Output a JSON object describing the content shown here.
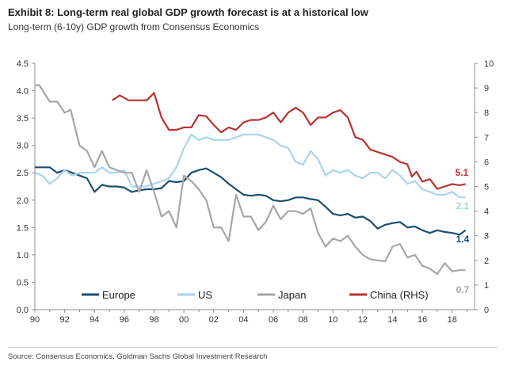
{
  "header": {
    "title": "Exhibit 8: Long-term real global GDP growth forecast is at a historical low",
    "subtitle": "Long-term (6-10y) GDP growth from Consensus Economics"
  },
  "footer": {
    "source": "Source: Consensus Economics, Goldman Sachs Global Investment Research"
  },
  "chart_data": {
    "type": "line",
    "x_ticks": [
      "90",
      "92",
      "94",
      "96",
      "98",
      "00",
      "02",
      "04",
      "06",
      "08",
      "10",
      "12",
      "14",
      "16",
      "18"
    ],
    "y_left_ticks": [
      "0.0",
      "0.5",
      "1.0",
      "1.5",
      "2.0",
      "2.5",
      "3.0",
      "3.5",
      "4.0",
      "4.5"
    ],
    "y_right_ticks": [
      "0",
      "1",
      "2",
      "3",
      "4",
      "5",
      "6",
      "7",
      "8",
      "9",
      "10"
    ],
    "xlim": [
      1990,
      2019.5
    ],
    "ylim_left": [
      0,
      4.5
    ],
    "ylim_right": [
      0,
      10
    ],
    "grid": false,
    "legend_placement": "bottom-center",
    "series": [
      {
        "name": "Europe",
        "axis": "left",
        "color": "#1b4f72",
        "end_label": "1.4",
        "points": [
          [
            1990,
            2.6
          ],
          [
            1990.5,
            2.6
          ],
          [
            1991,
            2.6
          ],
          [
            1991.5,
            2.5
          ],
          [
            1992,
            2.55
          ],
          [
            1992.5,
            2.5
          ],
          [
            1993,
            2.45
          ],
          [
            1993.5,
            2.4
          ],
          [
            1994,
            2.15
          ],
          [
            1994.5,
            2.28
          ],
          [
            1995,
            2.25
          ],
          [
            1995.5,
            2.25
          ],
          [
            1996,
            2.23
          ],
          [
            1996.5,
            2.15
          ],
          [
            1997,
            2.18
          ],
          [
            1997.5,
            2.2
          ],
          [
            1998,
            2.2
          ],
          [
            1998.5,
            2.22
          ],
          [
            1999,
            2.35
          ],
          [
            1999.5,
            2.33
          ],
          [
            2000,
            2.35
          ],
          [
            2000.5,
            2.5
          ],
          [
            2001,
            2.55
          ],
          [
            2001.5,
            2.58
          ],
          [
            2002,
            2.5
          ],
          [
            2002.5,
            2.42
          ],
          [
            2003,
            2.3
          ],
          [
            2003.5,
            2.2
          ],
          [
            2004,
            2.1
          ],
          [
            2004.5,
            2.08
          ],
          [
            2005,
            2.1
          ],
          [
            2005.5,
            2.08
          ],
          [
            2006,
            2.0
          ],
          [
            2006.5,
            1.98
          ],
          [
            2007,
            2.0
          ],
          [
            2007.5,
            2.05
          ],
          [
            2008,
            2.05
          ],
          [
            2008.5,
            2.02
          ],
          [
            2009,
            2.0
          ],
          [
            2009.5,
            1.88
          ],
          [
            2010,
            1.75
          ],
          [
            2010.5,
            1.72
          ],
          [
            2011,
            1.75
          ],
          [
            2011.5,
            1.68
          ],
          [
            2012,
            1.7
          ],
          [
            2012.5,
            1.62
          ],
          [
            2013,
            1.48
          ],
          [
            2013.5,
            1.55
          ],
          [
            2014,
            1.58
          ],
          [
            2014.5,
            1.6
          ],
          [
            2015,
            1.5
          ],
          [
            2015.5,
            1.52
          ],
          [
            2016,
            1.45
          ],
          [
            2016.5,
            1.4
          ],
          [
            2017,
            1.45
          ],
          [
            2017.5,
            1.42
          ],
          [
            2018,
            1.4
          ],
          [
            2018.5,
            1.37
          ],
          [
            2018.9,
            1.45
          ]
        ]
      },
      {
        "name": "US",
        "axis": "left",
        "color": "#a9d4ec",
        "end_label": "2.1",
        "points": [
          [
            1990,
            2.5
          ],
          [
            1990.5,
            2.45
          ],
          [
            1991,
            2.3
          ],
          [
            1991.5,
            2.4
          ],
          [
            1992,
            2.55
          ],
          [
            1992.5,
            2.45
          ],
          [
            1993,
            2.5
          ],
          [
            1993.5,
            2.5
          ],
          [
            1994,
            2.5
          ],
          [
            1994.5,
            2.6
          ],
          [
            1995,
            2.5
          ],
          [
            1995.5,
            2.5
          ],
          [
            1996,
            2.55
          ],
          [
            1996.5,
            2.25
          ],
          [
            1997,
            2.25
          ],
          [
            1997.5,
            2.25
          ],
          [
            1998,
            2.3
          ],
          [
            1998.5,
            2.35
          ],
          [
            1999,
            2.4
          ],
          [
            1999.5,
            2.6
          ],
          [
            2000,
            2.95
          ],
          [
            2000.5,
            3.2
          ],
          [
            2001,
            3.1
          ],
          [
            2001.5,
            3.15
          ],
          [
            2002,
            3.1
          ],
          [
            2002.5,
            3.1
          ],
          [
            2003,
            3.1
          ],
          [
            2003.5,
            3.15
          ],
          [
            2004,
            3.2
          ],
          [
            2004.5,
            3.2
          ],
          [
            2005,
            3.2
          ],
          [
            2005.5,
            3.15
          ],
          [
            2006,
            3.1
          ],
          [
            2006.5,
            3.0
          ],
          [
            2007,
            2.95
          ],
          [
            2007.5,
            2.7
          ],
          [
            2008,
            2.65
          ],
          [
            2008.5,
            2.9
          ],
          [
            2009,
            2.75
          ],
          [
            2009.5,
            2.45
          ],
          [
            2010,
            2.55
          ],
          [
            2010.5,
            2.5
          ],
          [
            2011,
            2.55
          ],
          [
            2011.5,
            2.45
          ],
          [
            2012,
            2.4
          ],
          [
            2012.5,
            2.5
          ],
          [
            2013,
            2.5
          ],
          [
            2013.5,
            2.4
          ],
          [
            2014,
            2.55
          ],
          [
            2014.5,
            2.45
          ],
          [
            2015,
            2.3
          ],
          [
            2015.5,
            2.35
          ],
          [
            2016,
            2.2
          ],
          [
            2016.5,
            2.15
          ],
          [
            2017,
            2.1
          ],
          [
            2017.5,
            2.1
          ],
          [
            2018,
            2.15
          ],
          [
            2018.5,
            2.05
          ],
          [
            2018.9,
            2.05
          ]
        ]
      },
      {
        "name": "Japan",
        "axis": "left",
        "color": "#a6a6a6",
        "end_label": "0.7",
        "points": [
          [
            1990,
            4.1
          ],
          [
            1990.3,
            4.1
          ],
          [
            1991,
            3.8
          ],
          [
            1991.5,
            3.8
          ],
          [
            1992,
            3.6
          ],
          [
            1992.4,
            3.65
          ],
          [
            1993,
            3.0
          ],
          [
            1993.5,
            2.9
          ],
          [
            1994,
            2.6
          ],
          [
            1994.5,
            2.9
          ],
          [
            1995,
            2.6
          ],
          [
            1995.5,
            2.55
          ],
          [
            1996,
            2.5
          ],
          [
            1996.5,
            2.5
          ],
          [
            1997,
            2.15
          ],
          [
            1997.5,
            2.55
          ],
          [
            1998,
            2.15
          ],
          [
            1998.5,
            1.7
          ],
          [
            1999,
            1.8
          ],
          [
            1999.5,
            1.5
          ],
          [
            2000,
            2.45
          ],
          [
            2000.5,
            2.35
          ],
          [
            2001,
            2.2
          ],
          [
            2001.5,
            2.0
          ],
          [
            2002,
            1.5
          ],
          [
            2002.5,
            1.5
          ],
          [
            2003,
            1.25
          ],
          [
            2003.5,
            2.1
          ],
          [
            2004,
            1.7
          ],
          [
            2004.5,
            1.7
          ],
          [
            2005,
            1.45
          ],
          [
            2005.5,
            1.6
          ],
          [
            2006,
            1.9
          ],
          [
            2006.5,
            1.65
          ],
          [
            2007,
            1.8
          ],
          [
            2007.5,
            1.8
          ],
          [
            2008,
            1.75
          ],
          [
            2008.5,
            1.85
          ],
          [
            2009,
            1.4
          ],
          [
            2009.5,
            1.15
          ],
          [
            2010,
            1.3
          ],
          [
            2010.5,
            1.25
          ],
          [
            2011,
            1.35
          ],
          [
            2011.5,
            1.15
          ],
          [
            2012,
            1.0
          ],
          [
            2012.5,
            0.92
          ],
          [
            2013,
            0.9
          ],
          [
            2013.5,
            0.88
          ],
          [
            2014,
            1.15
          ],
          [
            2014.5,
            1.2
          ],
          [
            2015,
            0.95
          ],
          [
            2015.5,
            1.0
          ],
          [
            2016,
            0.8
          ],
          [
            2016.5,
            0.75
          ],
          [
            2017,
            0.65
          ],
          [
            2017.5,
            0.85
          ],
          [
            2018,
            0.7
          ],
          [
            2018.5,
            0.72
          ],
          [
            2018.9,
            0.72
          ]
        ]
      },
      {
        "name": "China (RHS)",
        "axis": "right",
        "color": "#b83232",
        "end_label": "5.1",
        "points": [
          [
            1995.2,
            8.5
          ],
          [
            1995.7,
            8.7
          ],
          [
            1996.3,
            8.5
          ],
          [
            1997,
            8.5
          ],
          [
            1997.5,
            8.5
          ],
          [
            1998,
            8.8
          ],
          [
            1998.5,
            7.8
          ],
          [
            1999,
            7.3
          ],
          [
            1999.5,
            7.3
          ],
          [
            2000,
            7.4
          ],
          [
            2000.5,
            7.4
          ],
          [
            2001,
            7.9
          ],
          [
            2001.5,
            7.85
          ],
          [
            2002,
            7.5
          ],
          [
            2002.5,
            7.2
          ],
          [
            2003,
            7.4
          ],
          [
            2003.5,
            7.3
          ],
          [
            2004,
            7.6
          ],
          [
            2004.5,
            7.7
          ],
          [
            2005,
            7.7
          ],
          [
            2005.5,
            7.8
          ],
          [
            2006,
            8.0
          ],
          [
            2006.5,
            7.6
          ],
          [
            2007,
            8.0
          ],
          [
            2007.5,
            8.2
          ],
          [
            2008,
            8.0
          ],
          [
            2008.5,
            7.5
          ],
          [
            2009,
            7.8
          ],
          [
            2009.5,
            7.8
          ],
          [
            2010,
            8.0
          ],
          [
            2010.5,
            8.1
          ],
          [
            2011,
            7.8
          ],
          [
            2011.5,
            7.0
          ],
          [
            2012,
            6.9
          ],
          [
            2012.5,
            6.5
          ],
          [
            2013,
            6.4
          ],
          [
            2013.5,
            6.3
          ],
          [
            2014,
            6.2
          ],
          [
            2014.5,
            6.0
          ],
          [
            2015,
            5.9
          ],
          [
            2015.3,
            5.4
          ],
          [
            2015.6,
            5.6
          ],
          [
            2016,
            5.2
          ],
          [
            2016.5,
            5.3
          ],
          [
            2017,
            4.9
          ],
          [
            2017.5,
            5.0
          ],
          [
            2018,
            5.1
          ],
          [
            2018.5,
            5.05
          ],
          [
            2018.9,
            5.1
          ]
        ]
      }
    ]
  }
}
